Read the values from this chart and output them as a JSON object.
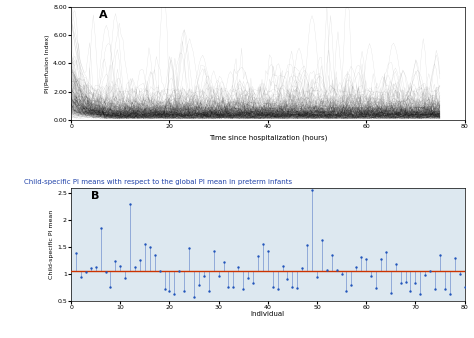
{
  "panel_A": {
    "label": "A",
    "xlabel": "Time since hospitalization (hours)",
    "ylabel": "PI(Perfusion Index)",
    "xlim": [
      0,
      80
    ],
    "ylim": [
      0,
      8
    ],
    "yticks": [
      0.0,
      2.0,
      4.0,
      6.0,
      8.0
    ],
    "ytick_labels": [
      "0.00",
      "2.00",
      "4.00",
      "6.00",
      "8.00"
    ],
    "xticks": [
      0,
      20,
      40,
      60,
      80
    ],
    "n_patients": 200,
    "n_timepoints": 200,
    "line_color": "black",
    "line_alpha": 0.12,
    "line_width": 0.25
  },
  "panel_B": {
    "label": "B",
    "title": "Child-specific PI means with respect to the global PI mean in preterm infants",
    "xlabel": "Individual",
    "ylabel": "Child-specific PI mean",
    "xlim": [
      0,
      80
    ],
    "ylim": [
      0.5,
      2.6
    ],
    "yticks": [
      0.5,
      1.0,
      1.5,
      2.0,
      2.5
    ],
    "ytick_labels": [
      "0.5",
      "1",
      "1.5",
      "2",
      "2.5"
    ],
    "xticks": [
      0,
      10,
      20,
      30,
      40,
      50,
      60,
      70,
      80
    ],
    "n_individuals": 80,
    "global_mean": 1.05,
    "ref_line_color": "#cc3300",
    "point_color": "#2255bb",
    "stem_color": "#6688cc",
    "background_color": "#dde8f0"
  }
}
